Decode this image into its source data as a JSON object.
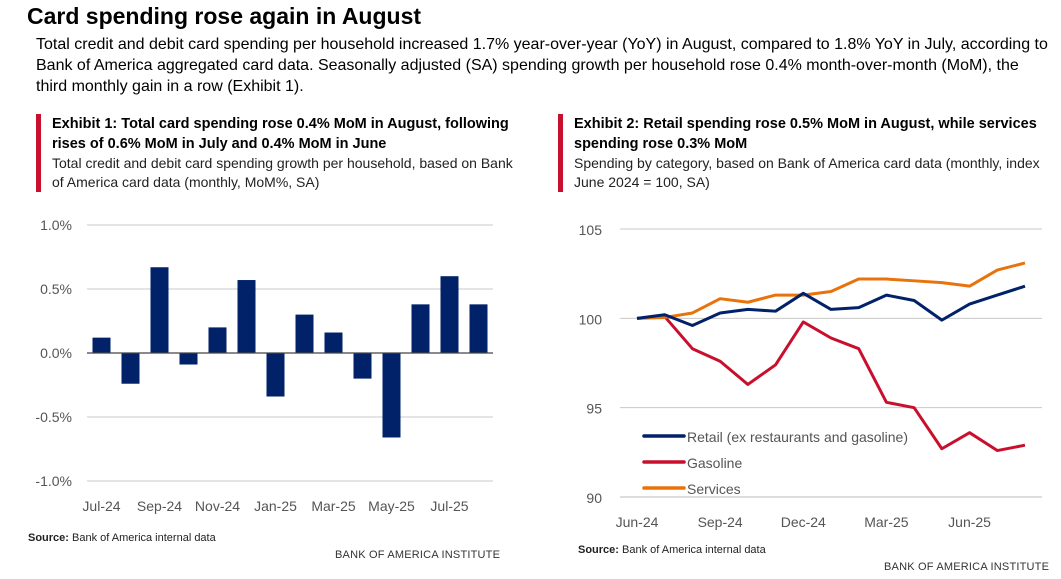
{
  "title": "Card spending rose again in August",
  "intro": "Total credit and debit card spending per household increased 1.7% year-over-year (YoY) in August, compared to 1.8% YoY in July, according to Bank of America aggregated card data. Seasonally adjusted (SA) spending growth per household rose 0.4% month-over-month (MoM), the third monthly gain in a row (Exhibit 1).",
  "exhibit1": {
    "heading": "Exhibit 1: Total card spending rose 0.4% MoM in August, following rises of 0.6% MoM in July and 0.4% MoM in June",
    "subheading": "Total credit and debit card spending growth per household, based on Bank of America card data (monthly, MoM%, SA)",
    "source_label": "Source:",
    "source": "Bank of America internal data",
    "brand": "BANK OF AMERICA INSTITUTE"
  },
  "exhibit2": {
    "heading": "Exhibit 2: Retail spending rose 0.5% MoM in August, while services spending rose 0.3% MoM",
    "subheading": "Spending by category, based on Bank of America card data (monthly, index June 2024 = 100, SA)",
    "source_label": "Source:",
    "source": "Bank of America internal data",
    "brand": "BANK OF AMERICA INSTITUTE"
  },
  "chart_data": [
    {
      "type": "bar",
      "categories": [
        "Jul-24",
        "Aug-24",
        "Sep-24",
        "Oct-24",
        "Nov-24",
        "Dec-24",
        "Jan-25",
        "Feb-25",
        "Mar-25",
        "Apr-25",
        "May-25",
        "Jun-25",
        "Jul-25",
        "Aug-25"
      ],
      "values": [
        0.12,
        -0.24,
        0.67,
        -0.09,
        0.2,
        0.57,
        -0.34,
        0.3,
        0.16,
        -0.2,
        -0.66,
        0.38,
        0.6,
        0.38
      ],
      "xticks": [
        "Jul-24",
        "Sep-24",
        "Nov-24",
        "Jan-25",
        "Mar-25",
        "May-25",
        "Jul-25"
      ],
      "yticks": [
        "1.0%",
        "0.5%",
        "0.0%",
        "-0.5%",
        "-1.0%"
      ],
      "ylim": [
        -1.0,
        1.0
      ],
      "grid": true,
      "color": "#012169"
    },
    {
      "type": "line",
      "x": [
        "Jun-24",
        "Jul-24",
        "Aug-24",
        "Sep-24",
        "Oct-24",
        "Nov-24",
        "Dec-24",
        "Jan-25",
        "Feb-25",
        "Mar-25",
        "Apr-25",
        "May-25",
        "Jun-25",
        "Jul-25",
        "Aug-25"
      ],
      "xticks": [
        "Jun-24",
        "Sep-24",
        "Dec-24",
        "Mar-25",
        "Jun-25"
      ],
      "yticks": [
        "105",
        "100",
        "95",
        "90"
      ],
      "ylim": [
        90,
        105
      ],
      "grid": true,
      "legend": "bottom-left",
      "series": [
        {
          "name": "Retail (ex restaurants and gasoline)",
          "color": "#012169",
          "values": [
            100,
            100.2,
            99.6,
            100.3,
            100.5,
            100.4,
            101.4,
            100.5,
            100.6,
            101.3,
            101.0,
            99.9,
            100.8,
            101.3,
            101.8
          ]
        },
        {
          "name": "Gasoline",
          "color": "#c8102e",
          "values": [
            100,
            100.1,
            98.3,
            97.6,
            96.3,
            97.4,
            99.8,
            98.9,
            98.3,
            95.3,
            95.0,
            92.7,
            93.6,
            92.6,
            92.9
          ]
        },
        {
          "name": "Services",
          "color": "#e8730c",
          "values": [
            100,
            100.05,
            100.3,
            101.1,
            100.9,
            101.3,
            101.3,
            101.5,
            102.2,
            102.2,
            102.1,
            102.0,
            101.8,
            102.7,
            103.1
          ]
        }
      ]
    }
  ]
}
